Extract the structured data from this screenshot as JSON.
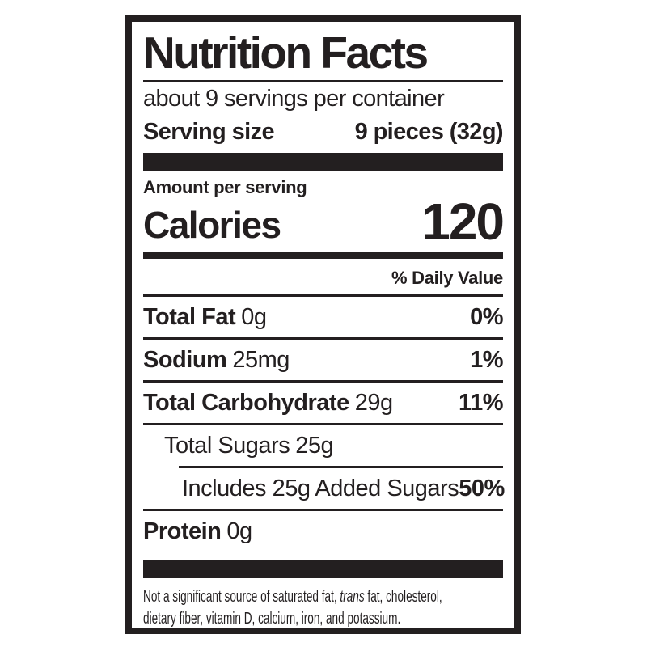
{
  "colors": {
    "ink": "#231f20",
    "background": "#ffffff"
  },
  "label": {
    "title": "Nutrition Facts",
    "servings_per_container": "about 9 servings per container",
    "serving_size": {
      "label": "Serving size",
      "value": "9 pieces (32g)"
    },
    "amount_per_serving": "Amount per serving",
    "calories": {
      "label": "Calories",
      "value": "120"
    },
    "daily_value_header": "% Daily Value",
    "nutrients": [
      {
        "name": "Total Fat",
        "amount": "0g",
        "daily_value": "0%"
      },
      {
        "name": "Sodium",
        "amount": "25mg",
        "daily_value": "1%"
      },
      {
        "name": "Total Carbohydrate",
        "amount": "29g",
        "daily_value": "11%"
      },
      {
        "name": "Total Sugars",
        "amount": "25g",
        "daily_value": ""
      },
      {
        "name": "Includes 25g Added Sugars",
        "amount": "",
        "daily_value": "50%"
      },
      {
        "name": "Protein",
        "amount": "0g",
        "daily_value": ""
      }
    ],
    "footnote": {
      "line1_before": "Not a significant source of saturated fat, ",
      "line1_italic": "trans",
      "line1_after": " fat, cholesterol,",
      "line2": "dietary fiber, vitamin D, calcium, iron, and potassium."
    }
  }
}
